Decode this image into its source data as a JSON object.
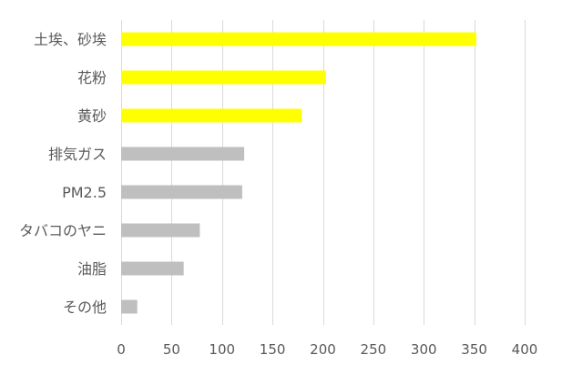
{
  "chart_data": {
    "type": "bar",
    "orientation": "horizontal",
    "title": "",
    "xlabel": "",
    "ylabel": "",
    "categories": [
      "土埃、砂埃",
      "花粉",
      "黄砂",
      "排気ガス",
      "PM2.5",
      "タバコのヤニ",
      "油脂",
      "その他"
    ],
    "values": [
      352,
      203,
      179,
      122,
      120,
      78,
      62,
      16
    ],
    "bar_colors": [
      "#FFFF00",
      "#FFFF00",
      "#FFFF00",
      "#BFBFBF",
      "#BFBFBF",
      "#BFBFBF",
      "#BFBFBF",
      "#BFBFBF"
    ],
    "xlim": [
      0,
      400
    ],
    "xticks": [
      0,
      50,
      100,
      150,
      200,
      250,
      300,
      350,
      400
    ],
    "grid": true,
    "gridline_color": "#D9D9D9",
    "legend": "none"
  }
}
